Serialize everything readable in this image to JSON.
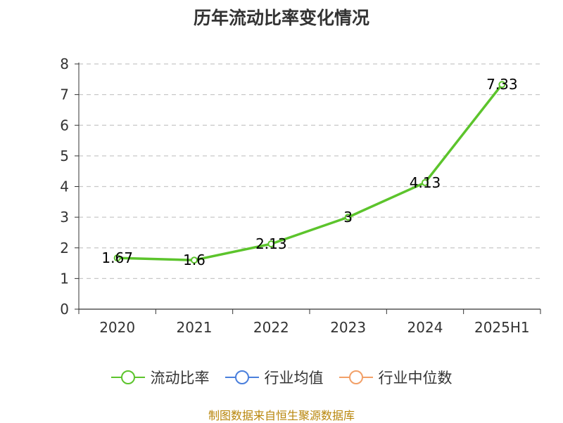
{
  "title": "历年流动比率变化情况",
  "source": "制图数据来自恒生聚源数据库",
  "legend": [
    {
      "name": "流动比率",
      "color": "#5cc42c"
    },
    {
      "name": "行业均值",
      "color": "#4a7fdc"
    },
    {
      "name": "行业中位数",
      "color": "#f2a068"
    }
  ],
  "chart_data": {
    "type": "line",
    "title": "历年流动比率变化情况",
    "categories": [
      "2020",
      "2021",
      "2022",
      "2023",
      "2024",
      "2025H1"
    ],
    "series": [
      {
        "name": "流动比率",
        "color": "#5cc42c",
        "values": [
          1.67,
          1.6,
          2.13,
          3,
          4.13,
          7.33
        ],
        "labels": [
          "1.67",
          "1.6",
          "2.13",
          "3",
          "4.13",
          "7.33"
        ]
      }
    ],
    "ylim": [
      0,
      8
    ],
    "yticks": [
      "0",
      "1",
      "2",
      "3",
      "4",
      "5",
      "6",
      "7",
      "8"
    ],
    "grid": true,
    "legend_position": "bottom"
  }
}
